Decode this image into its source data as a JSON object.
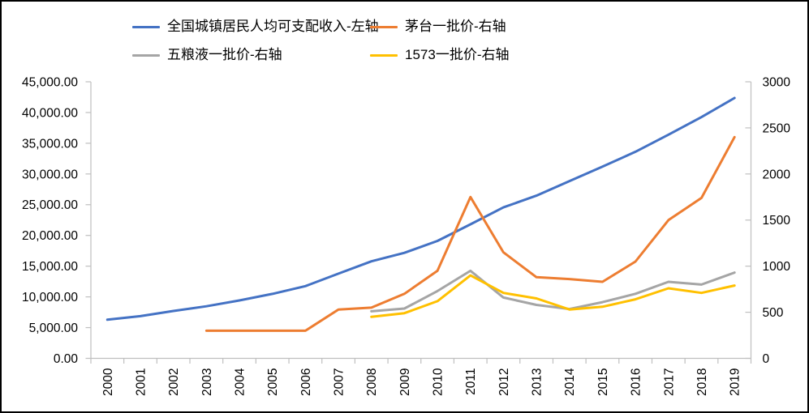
{
  "chart_data": {
    "type": "line",
    "title": "",
    "legend_position": "top",
    "grid": false,
    "categories": [
      "2000",
      "2001",
      "2002",
      "2003",
      "2004",
      "2005",
      "2006",
      "2007",
      "2008",
      "2009",
      "2010",
      "2011",
      "2012",
      "2013",
      "2014",
      "2015",
      "2016",
      "2017",
      "2018",
      "2019"
    ],
    "left_axis": {
      "min": 0,
      "max": 45000,
      "tick_step": 5000,
      "tick_labels": [
        "0.00",
        "5,000.00",
        "10,000.00",
        "15,000.00",
        "20,000.00",
        "25,000.00",
        "30,000.00",
        "35,000.00",
        "40,000.00",
        "45,000.00"
      ]
    },
    "right_axis": {
      "min": 0,
      "max": 3000,
      "tick_step": 500,
      "tick_labels": [
        "0",
        "500",
        "1000",
        "1500",
        "2000",
        "2500",
        "3000"
      ]
    },
    "series": [
      {
        "name": "全国城镇居民人均可支配收入-左轴",
        "axis": "left",
        "color": "#4472C4",
        "values": [
          6280,
          6860,
          7703,
          8472,
          9422,
          10493,
          11759,
          13786,
          15781,
          17175,
          19109,
          21810,
          24565,
          26467,
          28844,
          31195,
          33616,
          36396,
          39251,
          42359
        ]
      },
      {
        "name": "茅台一批价-右轴",
        "axis": "right",
        "color": "#ED7D31",
        "values": [
          null,
          null,
          null,
          300,
          300,
          300,
          300,
          530,
          550,
          700,
          950,
          1750,
          1150,
          880,
          860,
          830,
          1050,
          1500,
          1740,
          2400
        ]
      },
      {
        "name": "五粮液一批价-右轴",
        "axis": "right",
        "color": "#A5A5A5",
        "values": [
          null,
          null,
          null,
          null,
          null,
          null,
          null,
          null,
          510,
          540,
          730,
          950,
          660,
          580,
          535,
          610,
          700,
          830,
          800,
          930
        ]
      },
      {
        "name": "1573一批价-右轴",
        "axis": "right",
        "color": "#FFC000",
        "values": [
          null,
          null,
          null,
          null,
          null,
          null,
          null,
          null,
          450,
          490,
          620,
          900,
          710,
          650,
          530,
          560,
          640,
          760,
          710,
          790
        ]
      }
    ],
    "axis_color": "#BFBFBF",
    "label_color": "#000000"
  }
}
